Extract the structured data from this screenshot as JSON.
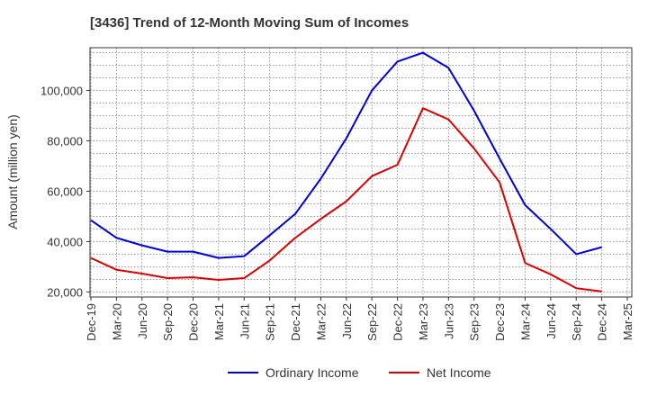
{
  "chart_data": {
    "type": "line",
    "title": "[3436]  Trend of 12-Month Moving Sum of Incomes",
    "xlabel": "",
    "ylabel": "Amount (million yen)",
    "categories": [
      "Dec-19",
      "Mar-20",
      "Jun-20",
      "Sep-20",
      "Dec-20",
      "Mar-21",
      "Jun-21",
      "Sep-21",
      "Dec-21",
      "Mar-22",
      "Jun-22",
      "Sep-22",
      "Dec-22",
      "Mar-23",
      "Jun-23",
      "Sep-23",
      "Dec-23",
      "Mar-24",
      "Jun-24",
      "Sep-24",
      "Dec-24",
      "Mar-25"
    ],
    "ylim": [
      18000,
      117000
    ],
    "yticks": [
      20000,
      40000,
      60000,
      80000,
      100000
    ],
    "ytick_labels": [
      "20,000",
      "40,000",
      "60,000",
      "80,000",
      "100,000"
    ],
    "grid": true,
    "legend_position": "bottom",
    "series": [
      {
        "name": "Ordinary Income",
        "color": "#0000dd",
        "values": [
          48500,
          41500,
          38500,
          36000,
          36000,
          33500,
          34200,
          42500,
          51000,
          65000,
          81000,
          100000,
          111500,
          115000,
          109000,
          92000,
          73000,
          54500,
          45000,
          35000,
          37800,
          null
        ]
      },
      {
        "name": "Net Income",
        "color": "#dd0000",
        "values": [
          33500,
          28800,
          27300,
          25500,
          25800,
          24800,
          25500,
          32500,
          41500,
          49000,
          56000,
          66000,
          70500,
          93000,
          88500,
          77000,
          63500,
          31500,
          27000,
          21500,
          20200,
          null
        ]
      }
    ]
  }
}
